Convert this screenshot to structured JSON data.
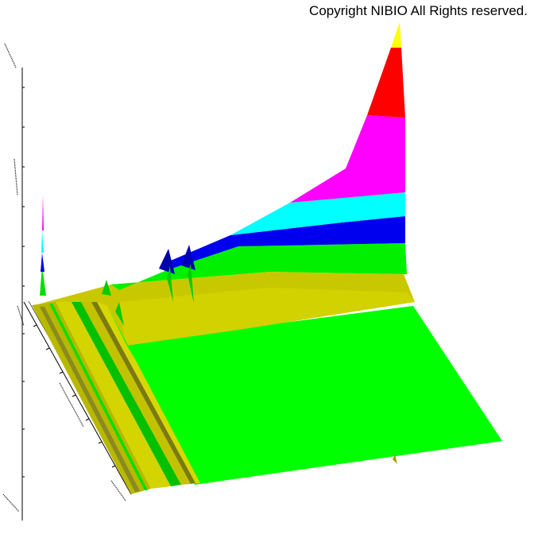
{
  "copyright": "Copyright NIBIO All Rights reserved.",
  "chart_data": {
    "type": "surface-3d",
    "title": "",
    "xlabel": "",
    "ylabel": "",
    "zlabel": "",
    "height_bands": [
      {
        "name": "",
        "color": "#00ff00"
      },
      {
        "name": "",
        "color": "#0000ff"
      },
      {
        "name": "",
        "color": "#00ffff"
      },
      {
        "name": "",
        "color": "#ff00ff"
      },
      {
        "name": "",
        "color": "#ff0000"
      },
      {
        "name": "",
        "color": "#ffff00"
      }
    ],
    "base_colors": {
      "floor": "#00ff00",
      "ridge": "#cccc00",
      "ridge_dark": "#7a7a10"
    },
    "grid": false,
    "legend": "none"
  }
}
